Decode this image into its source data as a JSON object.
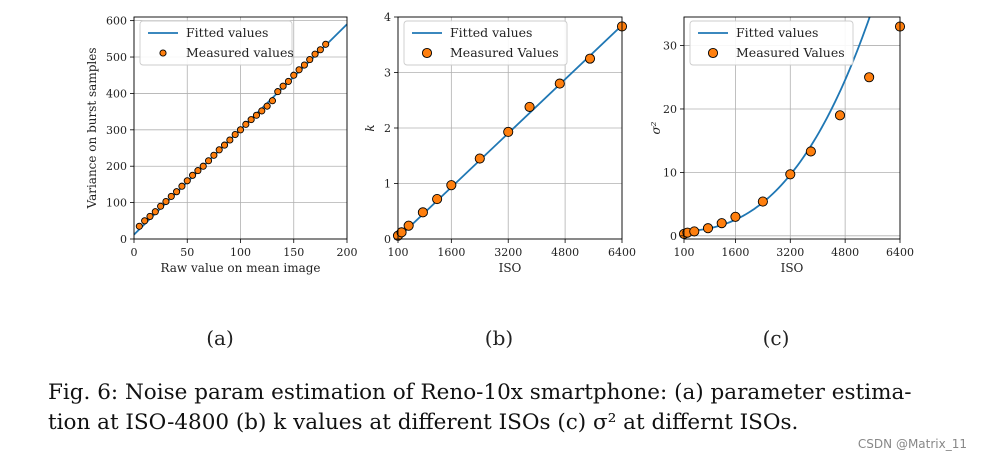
{
  "figure": {
    "subfigure_labels": [
      "(a)",
      "(b)",
      "(c)"
    ],
    "caption_line1": "Fig. 6: Noise param estimation of Reno-10x smartphone: (a) parameter estima-",
    "caption_line2": "tion at ISO-4800 (b) k values at different ISOs (c) σ² at differnt ISOs.",
    "watermark": "CSDN @Matrix_11"
  },
  "colors": {
    "line": "#1f77b4",
    "marker": "#ff7f0e",
    "grid": "#b0b0b0",
    "axis": "#000000"
  },
  "chart_data": [
    {
      "type": "scatter",
      "title": "",
      "xlabel": "Raw value on mean image",
      "ylabel": "Variance on burst samples",
      "xlim": [
        0,
        200
      ],
      "ylim": [
        0,
        610
      ],
      "xticks": [
        0,
        50,
        100,
        150,
        200
      ],
      "yticks": [
        0,
        100,
        200,
        300,
        400,
        500,
        600
      ],
      "xtick_labels": [
        "0",
        "50",
        "100",
        "150",
        "200"
      ],
      "ytick_labels": [
        "0",
        "100",
        "200",
        "300",
        "400",
        "500",
        "600"
      ],
      "legend": [
        "Fitted values",
        "Measured values"
      ],
      "legend_position": "top-left",
      "series": [
        {
          "name": "Fitted values",
          "kind": "line",
          "x": [
            0,
            200
          ],
          "y": [
            12,
            590
          ]
        },
        {
          "name": "Measured values",
          "kind": "scatter",
          "x": [
            5,
            10,
            15,
            20,
            25,
            30,
            35,
            40,
            45,
            50,
            55,
            60,
            65,
            70,
            75,
            80,
            85,
            90,
            95,
            100,
            105,
            110,
            115,
            120,
            125,
            130,
            135,
            140,
            145,
            150,
            155,
            160,
            165,
            170,
            175,
            180
          ],
          "y": [
            35,
            50,
            62,
            75,
            90,
            103,
            117,
            130,
            145,
            160,
            175,
            188,
            200,
            215,
            230,
            245,
            258,
            272,
            287,
            300,
            315,
            328,
            340,
            352,
            365,
            380,
            405,
            420,
            433,
            450,
            465,
            478,
            493,
            508,
            520,
            535
          ]
        }
      ]
    },
    {
      "type": "scatter",
      "title": "",
      "xlabel": "ISO",
      "ylabel": "k",
      "xlim": [
        100,
        6400
      ],
      "ylim": [
        0,
        4
      ],
      "xticks": [
        100,
        1600,
        3200,
        4800,
        6400
      ],
      "yticks": [
        0,
        1,
        2,
        3,
        4
      ],
      "xtick_labels": [
        "100",
        "1600",
        "3200",
        "4800",
        "6400"
      ],
      "ytick_labels": [
        "0",
        "1",
        "2",
        "3",
        "4"
      ],
      "legend": [
        "Fitted values",
        "Measured Values"
      ],
      "legend_position": "top-left",
      "series": [
        {
          "name": "Fitted values",
          "kind": "line",
          "x": [
            100,
            6400
          ],
          "y": [
            0.02,
            3.85
          ]
        },
        {
          "name": "Measured Values",
          "kind": "scatter",
          "x": [
            100,
            200,
            400,
            800,
            1200,
            1600,
            2400,
            3200,
            3800,
            4650,
            5500,
            6400
          ],
          "y": [
            0.06,
            0.12,
            0.24,
            0.48,
            0.72,
            0.97,
            1.45,
            1.93,
            2.38,
            2.8,
            3.25,
            3.83
          ]
        }
      ]
    },
    {
      "type": "scatter",
      "title": "",
      "xlabel": "ISO",
      "ylabel": "σ²",
      "xlim": [
        100,
        6400
      ],
      "ylim": [
        -0.5,
        34.5
      ],
      "xticks": [
        100,
        1600,
        3200,
        4800,
        6400
      ],
      "yticks": [
        0,
        10,
        20,
        30
      ],
      "xtick_labels": [
        "100",
        "1600",
        "3200",
        "4800",
        "6400"
      ],
      "ytick_labels": [
        "0",
        "10",
        "20",
        "30"
      ],
      "legend": [
        "Fitted values",
        "Measured Values"
      ],
      "legend_position": "top-left",
      "series": [
        {
          "name": "Fitted values",
          "kind": "curve",
          "coef": [
            0.75,
            1.25e-06,
            5.3e-07,
            1.05e-10
          ]
        },
        {
          "name": "Measured Values",
          "kind": "scatter",
          "x": [
            100,
            200,
            400,
            800,
            1200,
            1600,
            2400,
            3200,
            3800,
            4650,
            5500,
            6400
          ],
          "y": [
            0.3,
            0.5,
            0.7,
            1.2,
            2.0,
            3.0,
            5.4,
            9.7,
            13.3,
            19.0,
            25.0,
            33.0
          ]
        }
      ]
    }
  ]
}
